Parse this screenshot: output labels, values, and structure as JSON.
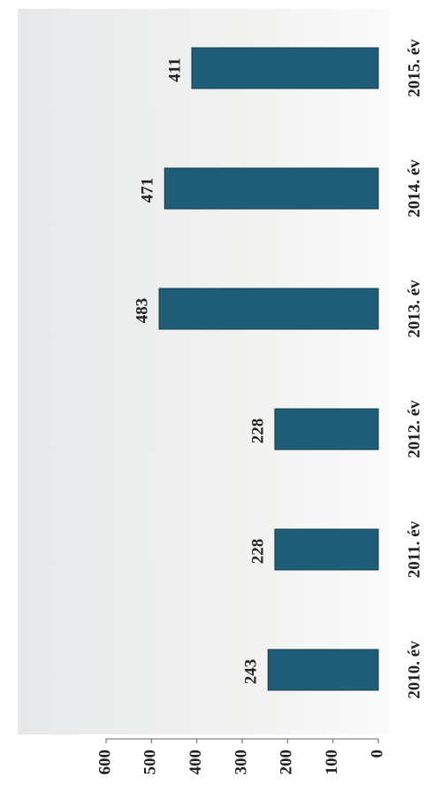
{
  "chart_data": {
    "type": "bar",
    "categories": [
      "2010. év",
      "2011. év",
      "2012. év",
      "2013. év",
      "2014. év",
      "2015. év"
    ],
    "values": [
      243,
      228,
      228,
      483,
      471,
      411
    ],
    "color": "#1f5d78",
    "ylim": [
      0,
      600
    ],
    "yticks": [
      0,
      100,
      200,
      300,
      400,
      500,
      600
    ]
  }
}
